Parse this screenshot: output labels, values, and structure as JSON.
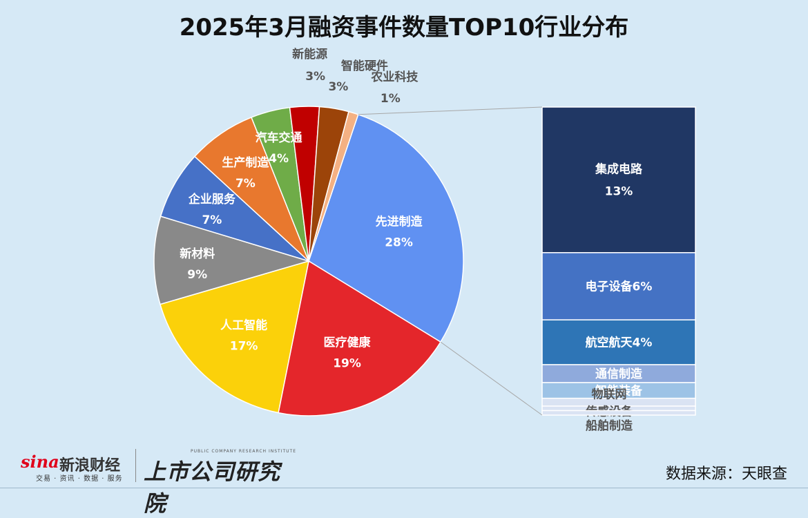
{
  "title": "2025年3月融资事件数量TOP10行业分布",
  "source": "数据来源：天眼查",
  "logos": {
    "sina_word": "sina",
    "sina_cn": "新浪财经",
    "sina_sub": "交易 · 资讯 · 数据 · 服务",
    "institute_en": "PUBLIC COMPANY RESEARCH INSTITUTE",
    "institute_cn": "上市公司研究院"
  },
  "chart_data": [
    {
      "type": "pie",
      "title": "2025年3月融资事件数量TOP10行业分布",
      "slices": [
        {
          "label": "先进制造",
          "value": 28,
          "value_label": "28%",
          "color": "#6091f2"
        },
        {
          "label": "医疗健康",
          "value": 19,
          "value_label": "19%",
          "color": "#e4262b"
        },
        {
          "label": "人工智能",
          "value": 17,
          "value_label": "17%",
          "color": "#fbd10a"
        },
        {
          "label": "新材料",
          "value": 9,
          "value_label": "9%",
          "color": "#898989"
        },
        {
          "label": "企业服务",
          "value": 7,
          "value_label": "7%",
          "color": "#4671c7"
        },
        {
          "label": "生产制造",
          "value": 7,
          "value_label": "7%",
          "color": "#e8782e"
        },
        {
          "label": "汽车交通",
          "value": 4,
          "value_label": "4%",
          "color": "#6fac48"
        },
        {
          "label": "新能源",
          "value": 3,
          "value_label": "3%",
          "color": "#c00000"
        },
        {
          "label": "智能硬件",
          "value": 3,
          "value_label": "3%",
          "color": "#9c4409"
        },
        {
          "label": "农业科技",
          "value": 1,
          "value_label": "1%",
          "color": "#f4b183"
        }
      ]
    },
    {
      "type": "bar",
      "stacked": true,
      "breakdown_of": "先进制造",
      "segments": [
        {
          "label": "集成电路",
          "value": 13,
          "value_label": "13%",
          "color": "#203764"
        },
        {
          "label": "电子设备",
          "value": 6,
          "value_label": "6%",
          "color": "#4472c4"
        },
        {
          "label": "航空航天",
          "value": 4,
          "value_label": "4%",
          "color": "#2e75b6"
        },
        {
          "label": "通信制造",
          "value": 1.6,
          "color": "#8faadc"
        },
        {
          "label": "智能装备",
          "value": 1.4,
          "color": "#9dc3e6"
        },
        {
          "label": "物联网",
          "value": 0.7,
          "color": "#dae3f3"
        },
        {
          "label": "传感设备",
          "value": 0.4,
          "color": "#dae3f3"
        },
        {
          "label": "船舶制造",
          "value": 0.4,
          "color": "#dae3f3"
        }
      ]
    }
  ]
}
